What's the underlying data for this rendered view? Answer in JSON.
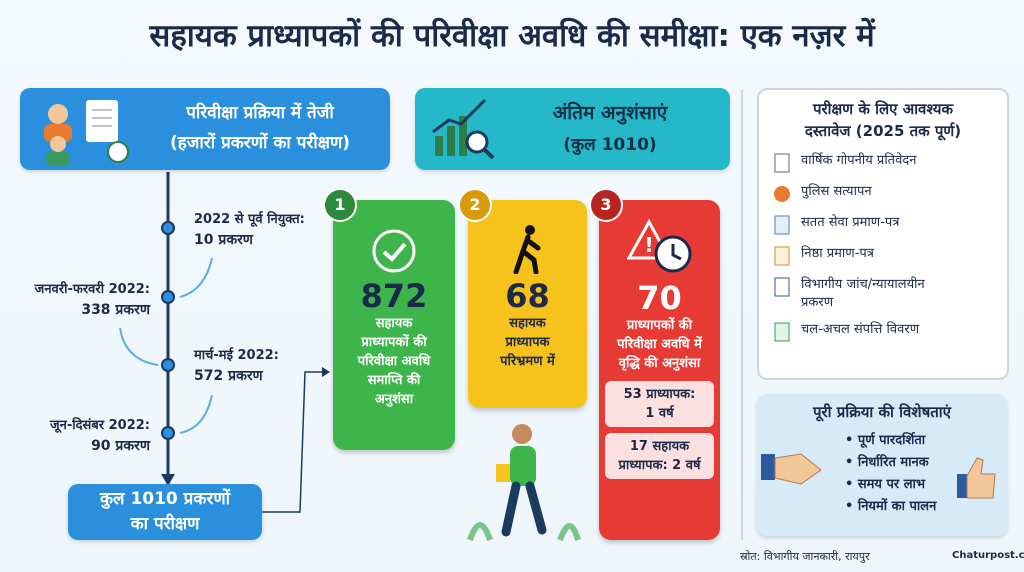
{
  "title": "सहायक प्राध्यापकों की परिवीक्षा अवधि की समीक्षा: एक नज़र में",
  "process": {
    "heading": [
      "परिवीक्षा प्रक्रिया में तेजी",
      "(हजारों प्रकरणों का परीक्षण)"
    ],
    "timeline": [
      {
        "label": "2022 से पूर्व नियुक्त:",
        "value": "10 प्रकरण"
      },
      {
        "label": "जनवरी-फरवरी 2022:",
        "value": "338 प्रकरण"
      },
      {
        "label": "मार्च-मई 2022:",
        "value": "572 प्रकरण"
      },
      {
        "label": "जून-दिसंबर 2022:",
        "value": "90 प्रकरण"
      }
    ],
    "total": [
      "कुल 1010 प्रकरणों",
      "का परीक्षण"
    ]
  },
  "recommendations": {
    "heading": [
      "अंतिम अनुशंसाएं",
      "(कुल 1010)"
    ],
    "cards": [
      {
        "number": "1",
        "value": "872",
        "text": [
          "सहायक",
          "प्राध्यापकों की",
          "परिवीक्षा अवधि",
          "समाप्ति की",
          "अनुशंसा"
        ]
      },
      {
        "number": "2",
        "value": "68",
        "text": [
          "सहायक",
          "प्राध्यापक",
          "परिभ्रमण में"
        ]
      },
      {
        "number": "3",
        "value": "70",
        "text": [
          "प्राध्यापकों की",
          "परिवीक्षा अवधि में",
          "वृद्धि की अनुशंसा"
        ],
        "details": [
          [
            "53 प्राध्यापक:",
            "1 वर्ष"
          ],
          [
            "17 सहायक",
            "प्राध्यापक: 2 वर्ष"
          ]
        ]
      }
    ]
  },
  "documents": {
    "heading": [
      "परीक्षण के लिए आवश्यक",
      "दस्तावेज (2025 तक पूर्ण)"
    ],
    "items": [
      [
        "वार्षिक गोपनीय प्रतिवेदन"
      ],
      [
        "पुलिस सत्यापन"
      ],
      [
        "सतत सेवा प्रमाण-पत्र"
      ],
      [
        "निष्ठा प्रमाण-पत्र"
      ],
      [
        "विभागीय जांच/न्यायालयीन",
        "प्रकरण"
      ],
      [
        "चल-अचल संपत्ति विवरण"
      ]
    ]
  },
  "features": {
    "heading": "पूरी प्रक्रिया की विशेषताएं",
    "items": [
      "• पूर्ण पारदर्शिता",
      "• निर्धारित मानक",
      "• समय पर लाभ",
      "• नियमों का पालन"
    ]
  },
  "source": "स्रोत: विभागीय जानकारी, रायपुर",
  "brand": "Chaturpost.com"
}
